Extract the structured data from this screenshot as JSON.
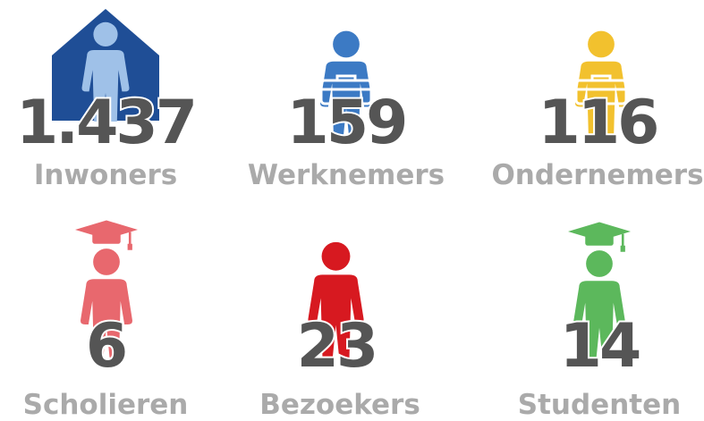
{
  "items": [
    {
      "value": "1.437",
      "label": "Inwoners"
    },
    {
      "value": "159",
      "label": "Werknemers"
    },
    {
      "value": "116",
      "label": "Ondernemers"
    },
    {
      "value": "6",
      "label": "Scholieren"
    },
    {
      "value": "23",
      "label": "Bezoekers"
    },
    {
      "value": "14",
      "label": "Studenten"
    }
  ]
}
